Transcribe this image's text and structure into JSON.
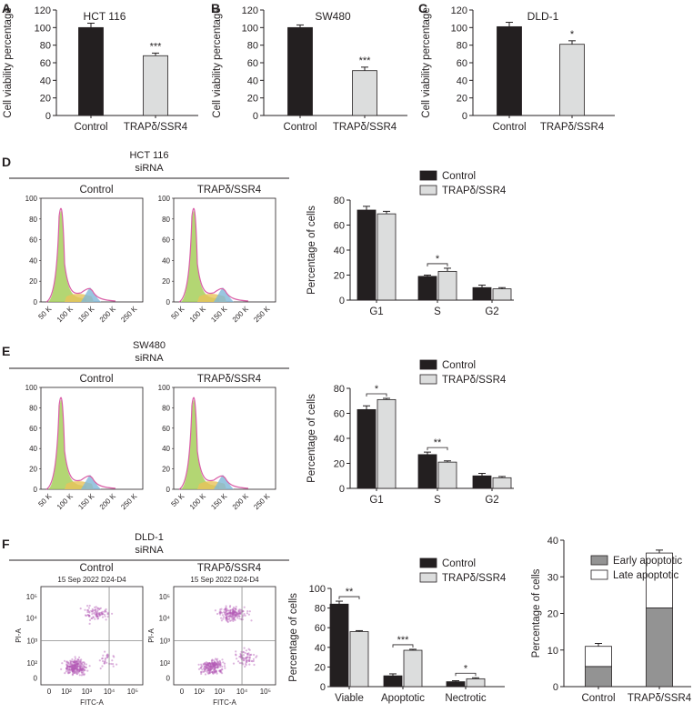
{
  "colors": {
    "dark": "#231f20",
    "light": "#dcdddd",
    "early": "#939393",
    "late": "#ffffff",
    "peak_green": "#a6cf5a",
    "peak_pink": "#d95fa7",
    "peak_yellow": "#e8c35a",
    "peak_blue": "#7fb8d8",
    "dot": "#b35bb5"
  },
  "chart_data": [
    {
      "panel": "A",
      "type": "bar",
      "title": "HCT 116",
      "ylabel": "Cell viability percentage",
      "ylim": [
        0,
        120
      ],
      "yticks": [
        0,
        20,
        40,
        60,
        80,
        100,
        120
      ],
      "categories": [
        "Control",
        "TRAPδ/SSR4"
      ],
      "values": [
        100,
        68
      ],
      "errors": [
        5,
        3
      ],
      "annotations": [
        {
          "category": "TRAPδ/SSR4",
          "label": "***"
        }
      ]
    },
    {
      "panel": "B",
      "type": "bar",
      "title": "SW480",
      "ylabel": "Cell viability percentage",
      "ylim": [
        0,
        120
      ],
      "yticks": [
        0,
        20,
        40,
        60,
        80,
        100,
        120
      ],
      "categories": [
        "Control",
        "TRAPδ/SSR4"
      ],
      "values": [
        100,
        51
      ],
      "errors": [
        3,
        4
      ],
      "annotations": [
        {
          "category": "TRAPδ/SSR4",
          "label": "***"
        }
      ]
    },
    {
      "panel": "C",
      "type": "bar",
      "title": "DLD-1",
      "ylabel": "Cell viability percentage",
      "ylim": [
        0,
        120
      ],
      "yticks": [
        0,
        20,
        40,
        60,
        80,
        100,
        120
      ],
      "categories": [
        "Control",
        "TRAPδ/SSR4"
      ],
      "values": [
        101,
        81
      ],
      "errors": [
        5,
        4
      ],
      "annotations": [
        {
          "category": "TRAPδ/SSR4",
          "label": "*"
        }
      ]
    },
    {
      "panel": "D",
      "type": "bar",
      "ylabel": "Percentage of cells",
      "ylim": [
        0,
        80
      ],
      "yticks": [
        0,
        20,
        40,
        60,
        80
      ],
      "categories": [
        "G1",
        "S",
        "G2"
      ],
      "legend": [
        "Control",
        "TRAPδ/SSR4"
      ],
      "series": [
        {
          "name": "Control",
          "values": [
            72,
            19,
            10
          ],
          "errors": [
            3,
            1,
            2
          ]
        },
        {
          "name": "TRAPδ/SSR4",
          "values": [
            69,
            23,
            9
          ],
          "errors": [
            2,
            2.5,
            1
          ]
        }
      ],
      "annotations": [
        {
          "category": "S",
          "label": "*"
        }
      ]
    },
    {
      "panel": "E",
      "type": "bar",
      "ylabel": "Percentage of cells",
      "ylim": [
        0,
        80
      ],
      "yticks": [
        0,
        20,
        40,
        60,
        80
      ],
      "categories": [
        "G1",
        "S",
        "G2"
      ],
      "legend": [
        "Control",
        "TRAPδ/SSR4"
      ],
      "series": [
        {
          "name": "Control",
          "values": [
            63,
            27,
            10
          ],
          "errors": [
            3,
            2,
            2
          ]
        },
        {
          "name": "TRAPδ/SSR4",
          "values": [
            71,
            21,
            8.5
          ],
          "errors": [
            1,
            1,
            1
          ]
        }
      ],
      "annotations": [
        {
          "category": "G1",
          "label": "*"
        },
        {
          "category": "S",
          "label": "**"
        }
      ]
    },
    {
      "panel": "F",
      "type": "bar",
      "ylabel": "Percentage of cells",
      "ylim": [
        0,
        100
      ],
      "yticks": [
        0,
        20,
        40,
        60,
        80,
        100
      ],
      "categories": [
        "Viable",
        "Apoptotic",
        "Nectrotic"
      ],
      "legend": [
        "Control",
        "TRAPδ/SSR4"
      ],
      "series": [
        {
          "name": "Control",
          "values": [
            84,
            11,
            5
          ],
          "errors": [
            3,
            2,
            1
          ]
        },
        {
          "name": "TRAPδ/SSR4",
          "values": [
            56,
            37,
            8
          ],
          "errors": [
            1,
            1,
            1
          ]
        }
      ],
      "annotations": [
        {
          "category": "Viable",
          "label": "**"
        },
        {
          "category": "Apoptotic",
          "label": "***"
        },
        {
          "category": "Nectrotic",
          "label": "*"
        }
      ]
    },
    {
      "panel": "F2",
      "type": "bar",
      "stacked": true,
      "ylabel": "Percentage of cells",
      "ylim": [
        0,
        40
      ],
      "yticks": [
        0,
        10,
        20,
        30,
        40
      ],
      "categories": [
        "Control",
        "TRAPδ/SSR4"
      ],
      "legend": [
        "Early apoptotic",
        "Late apoptotic"
      ],
      "series": [
        {
          "name": "Early apoptotic",
          "values": [
            5.5,
            21.5
          ],
          "errors": [
            1,
            1
          ]
        },
        {
          "name": "Late apoptotic",
          "values": [
            5.5,
            15
          ],
          "errors": [
            0.8,
            0.8
          ]
        }
      ]
    }
  ],
  "flow": {
    "D": {
      "title_line1": "HCT 116",
      "title_line2": "siRNA",
      "labels": [
        "Control",
        "TRAPδ/SSR4"
      ],
      "yticks": [
        "0",
        "20",
        "40",
        "60",
        "80",
        "100"
      ],
      "xticks": [
        "50 K",
        "100 K",
        "150 K",
        "200 K",
        "250 K"
      ]
    },
    "E": {
      "title_line1": "SW480",
      "title_line2": "siRNA",
      "labels": [
        "Control",
        "TRAPδ/SSR4"
      ],
      "yticks": [
        "0",
        "20",
        "40",
        "60",
        "80",
        "100"
      ],
      "xticks": [
        "50 K",
        "100 K",
        "150 K",
        "200 K",
        "250 K"
      ]
    },
    "F": {
      "title_line1": "DLD-1",
      "title_line2": "siRNA",
      "labels": [
        "Control",
        "TRAPδ/SSR4"
      ],
      "dates": [
        "15 Sep 2022 D24-D4",
        "15 Sep 2022 D24-D4"
      ],
      "ytick_labels": [
        "0",
        "10²",
        "10³",
        "10⁴",
        "10⁵"
      ],
      "xtick_labels": [
        "0",
        "10²",
        "10³",
        "10⁴",
        "10⁵"
      ],
      "xlabel": "FITC-A",
      "ylabel": "PI-A"
    }
  }
}
